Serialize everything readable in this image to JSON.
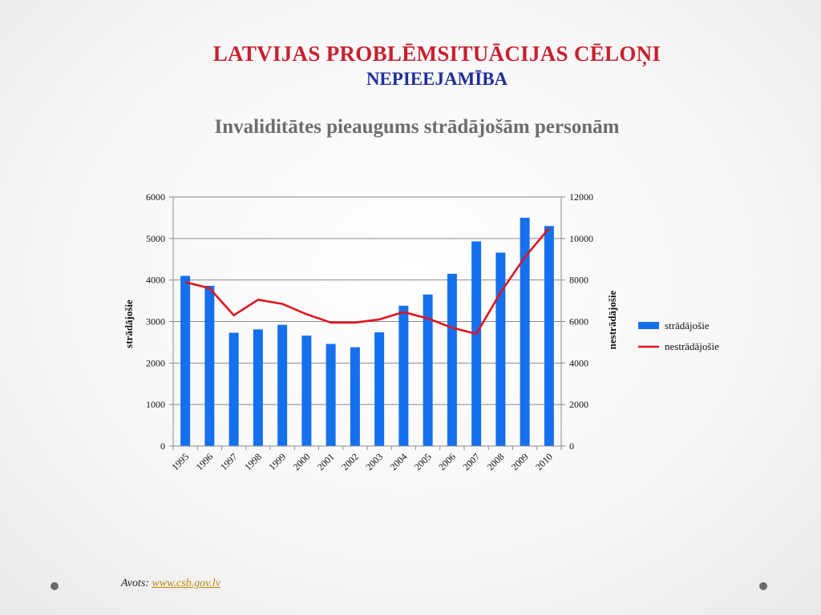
{
  "slide": {
    "title": "LATVIJAS PROBLĒMSITUĀCIJAS  CĒLOŅI",
    "subtitle": "NEPIEEJAMĪBA",
    "chart_heading": "Invaliditātes pieaugums strādājošām personām",
    "source_label": "Avots:",
    "source_link": "www.csb.gov.lv"
  },
  "colors": {
    "title": "#c8202f",
    "subtitle": "#1f2f9a",
    "bar": "#1570ee",
    "line": "#e0141e"
  },
  "chart_data": {
    "type": "bar",
    "categories": [
      "1995",
      "1996",
      "1997",
      "1998",
      "1999",
      "2000",
      "2001",
      "2002",
      "2003",
      "2004",
      "2005",
      "2006",
      "2007",
      "2008",
      "2009",
      "2010"
    ],
    "series": [
      {
        "name": "strādājošie",
        "type": "bar",
        "axis": "left",
        "values": [
          4100,
          3860,
          2730,
          2810,
          2920,
          2660,
          2460,
          2380,
          2740,
          3380,
          3650,
          4150,
          4930,
          4660,
          5500,
          5300
        ]
      },
      {
        "name": "nestrādājošie",
        "type": "line",
        "axis": "right",
        "values": [
          7900,
          7600,
          6300,
          7050,
          6850,
          6350,
          5950,
          5950,
          6100,
          6450,
          6150,
          5700,
          5400,
          7400,
          9100,
          10500
        ]
      }
    ],
    "ylabel": "strādājošie",
    "y2label": "nestrādājošie",
    "ylim": [
      0,
      6000
    ],
    "y2lim": [
      0,
      12000
    ],
    "yticks": [
      "0",
      "1000",
      "2000",
      "3000",
      "4000",
      "5000",
      "6000"
    ],
    "y2ticks": [
      "0",
      "2000",
      "4000",
      "6000",
      "8000",
      "10000",
      "12000"
    ],
    "grid": true,
    "legend": "right"
  }
}
